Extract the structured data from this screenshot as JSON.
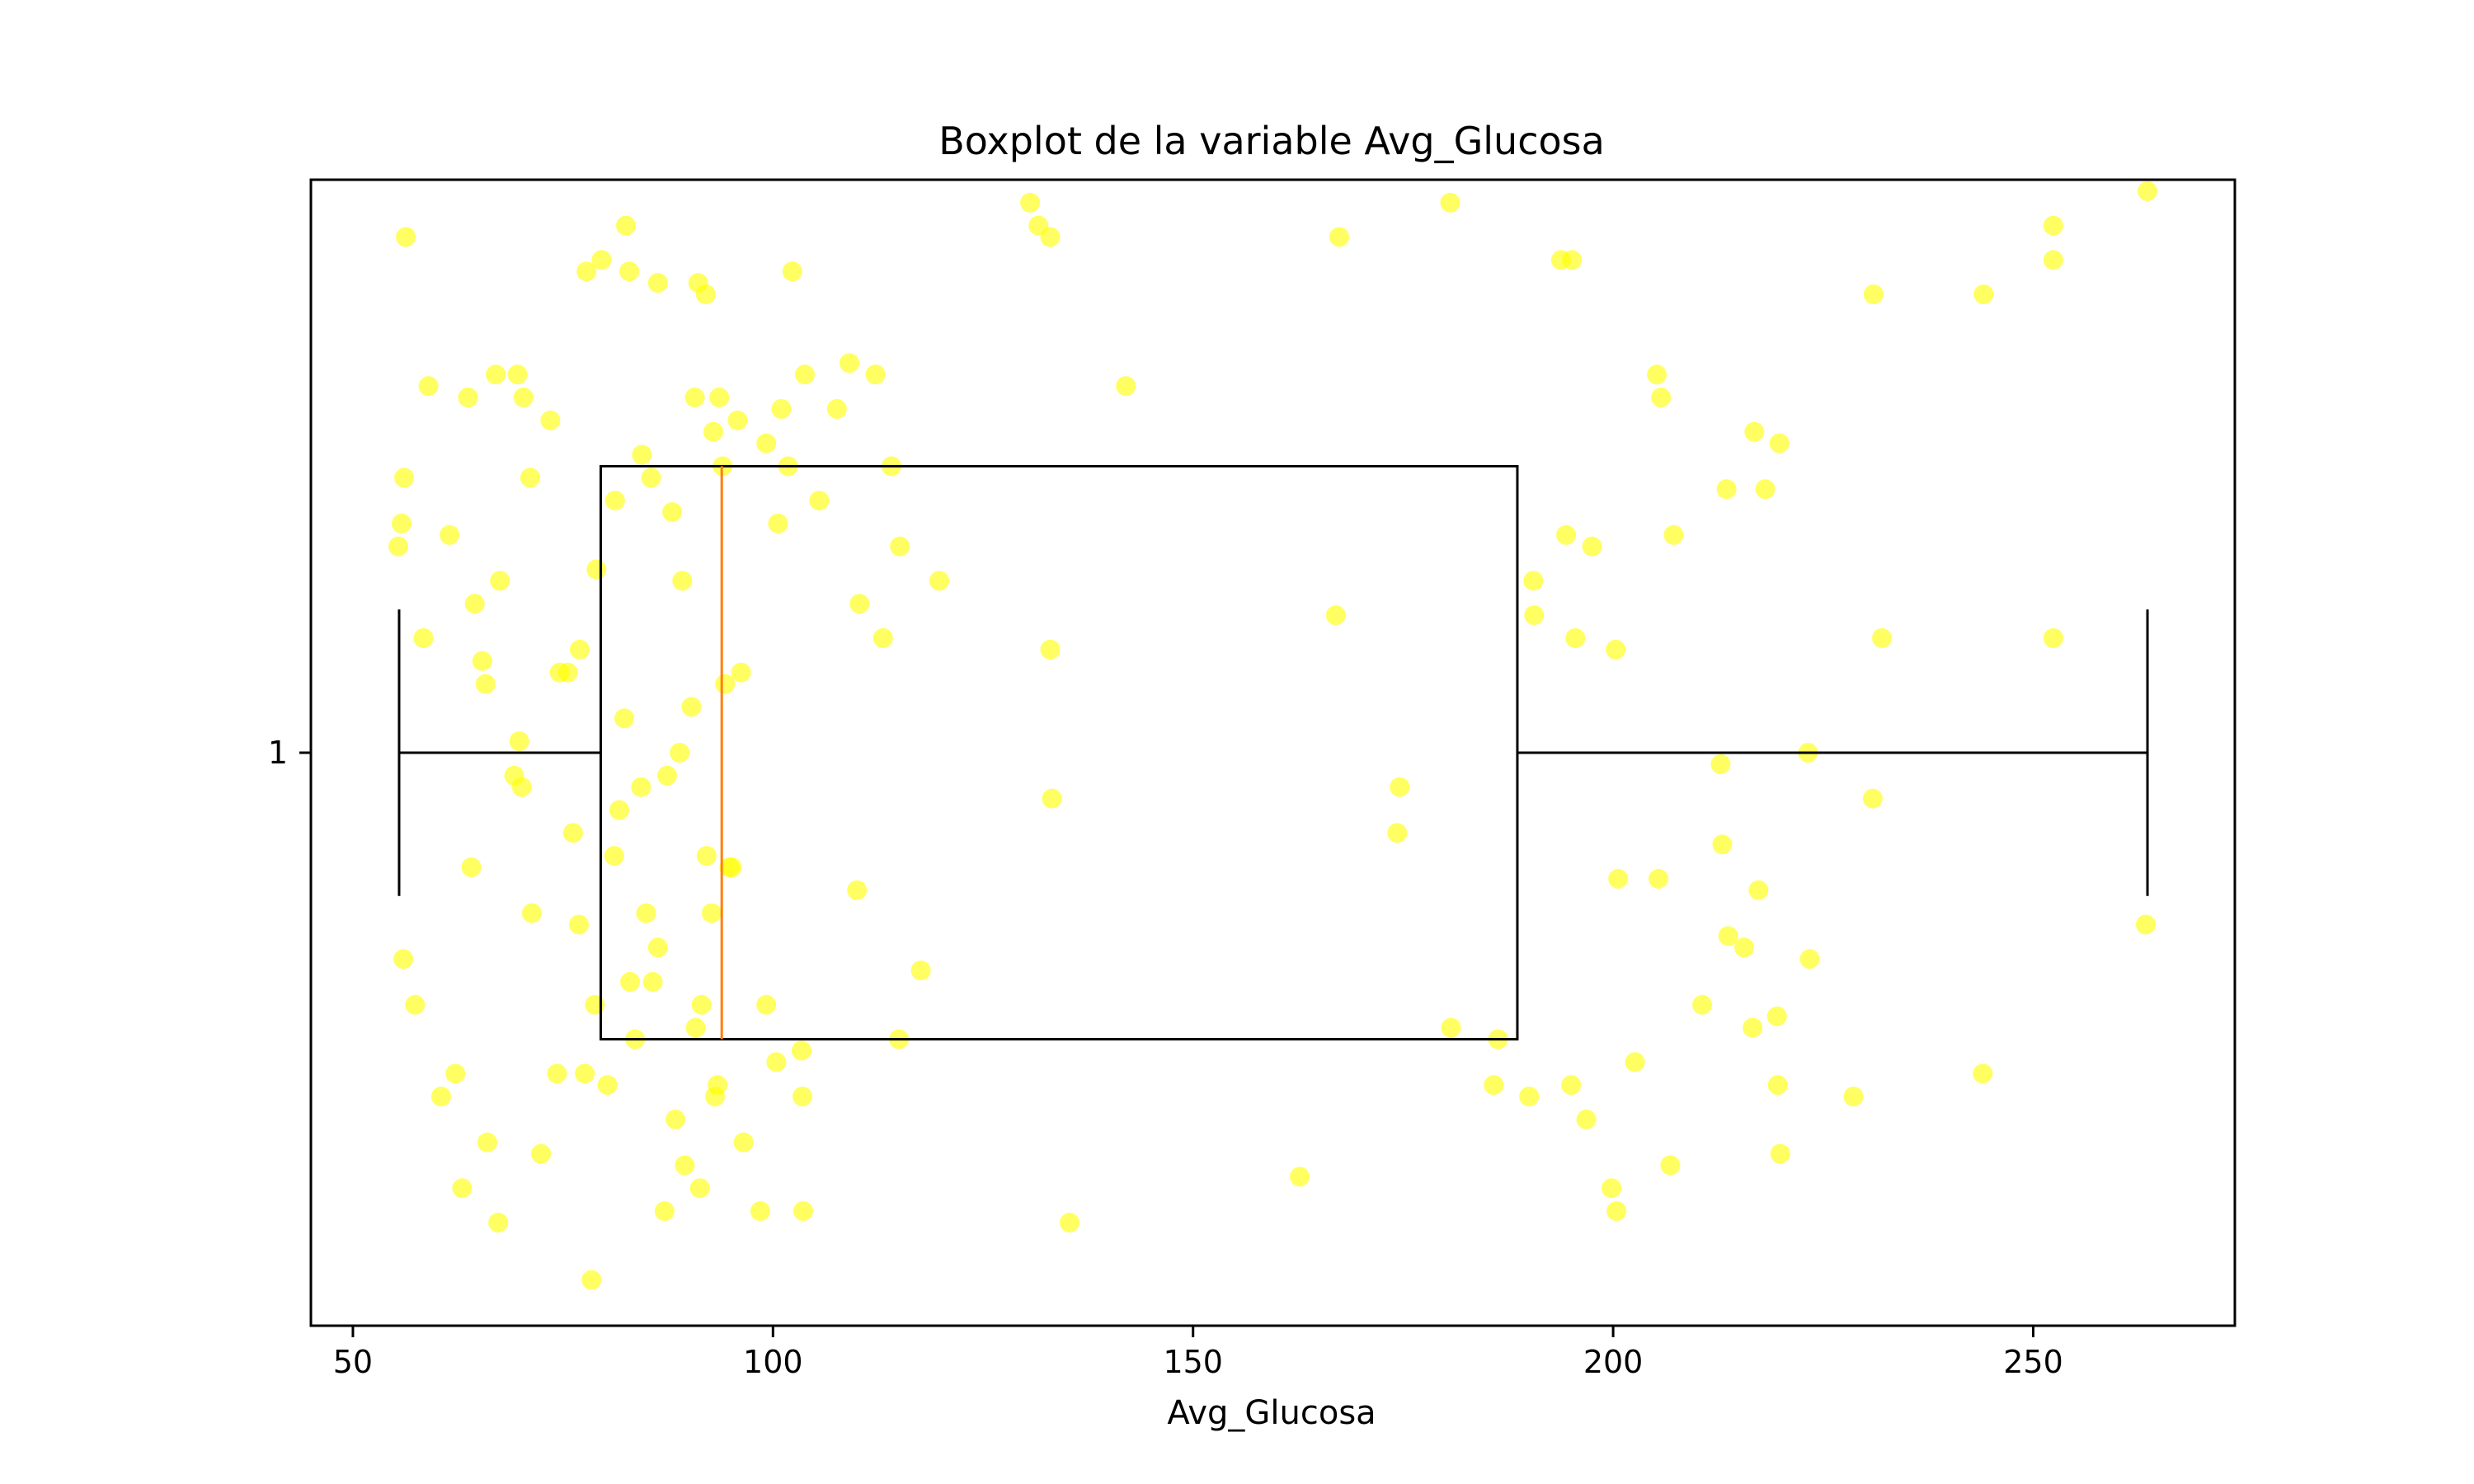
{
  "chart_data": {
    "type": "boxplot",
    "title": "Boxplot de la variable Avg_Glucosa",
    "xlabel": "Avg_Glucosa",
    "ylabel": "",
    "xlim": [
      45,
      274
    ],
    "xticks": [
      50,
      100,
      150,
      200,
      250
    ],
    "yticks": [
      {
        "value": 1,
        "label": "1"
      }
    ],
    "grid": false,
    "colors": {
      "box": "#000000",
      "median": "#ff7f0e",
      "points": "#ffff00",
      "frame": "#000000"
    },
    "box": {
      "position": 1,
      "whisker_low": 55.5,
      "q1": 79.5,
      "median": 93.9,
      "q3": 188.6,
      "whisker_high": 263.6
    },
    "points": [
      [
        56.3,
        1.45
      ],
      [
        56.1,
        1.24
      ],
      [
        55.8,
        1.2
      ],
      [
        55.4,
        1.18
      ],
      [
        58.4,
        1.1
      ],
      [
        59.0,
        1.32
      ],
      [
        61.5,
        1.19
      ],
      [
        63.7,
        1.31
      ],
      [
        64.5,
        1.13
      ],
      [
        65.4,
        1.08
      ],
      [
        65.8,
        1.06
      ],
      [
        67.0,
        1.33
      ],
      [
        67.5,
        1.15
      ],
      [
        69.6,
        1.33
      ],
      [
        70.3,
        1.31
      ],
      [
        71.1,
        1.24
      ],
      [
        73.5,
        1.29
      ],
      [
        74.6,
        1.07
      ],
      [
        75.6,
        1.07
      ],
      [
        77.0,
        1.09
      ],
      [
        77.8,
        1.42
      ],
      [
        79.0,
        1.16
      ],
      [
        79.6,
        1.43
      ],
      [
        81.2,
        1.22
      ],
      [
        82.5,
        1.46
      ],
      [
        82.9,
        1.42
      ],
      [
        84.4,
        1.26
      ],
      [
        85.5,
        1.24
      ],
      [
        86.3,
        1.41
      ],
      [
        88.0,
        1.21
      ],
      [
        89.2,
        1.15
      ],
      [
        90.7,
        1.31
      ],
      [
        91.1,
        1.41
      ],
      [
        92.0,
        1.4
      ],
      [
        92.9,
        1.28
      ],
      [
        93.6,
        1.31
      ],
      [
        94.0,
        1.25
      ],
      [
        95.8,
        1.29
      ],
      [
        96.2,
        1.07
      ],
      [
        99.2,
        1.27
      ],
      [
        100.6,
        1.2
      ],
      [
        101.0,
        1.3
      ],
      [
        101.8,
        1.25
      ],
      [
        102.3,
        1.42
      ],
      [
        103.8,
        1.33
      ],
      [
        105.5,
        1.22
      ],
      [
        107.6,
        1.3
      ],
      [
        109.1,
        1.34
      ],
      [
        110.3,
        1.13
      ],
      [
        112.2,
        1.33
      ],
      [
        113.1,
        1.1
      ],
      [
        114.1,
        1.25
      ],
      [
        115.1,
        1.18
      ],
      [
        119.8,
        1.15
      ],
      [
        130.6,
        1.48
      ],
      [
        131.6,
        1.46
      ],
      [
        133.0,
        1.45
      ],
      [
        142.0,
        1.32
      ],
      [
        167.4,
        1.45
      ],
      [
        180.6,
        1.48
      ],
      [
        193.8,
        1.43
      ],
      [
        195.1,
        1.43
      ],
      [
        194.4,
        1.19
      ],
      [
        190.5,
        1.15
      ],
      [
        190.6,
        1.12
      ],
      [
        195.5,
        1.1
      ],
      [
        197.5,
        1.18
      ],
      [
        200.3,
        1.09
      ],
      [
        205.2,
        1.33
      ],
      [
        205.7,
        1.31
      ],
      [
        207.2,
        1.19
      ],
      [
        213.5,
        1.23
      ],
      [
        216.8,
        1.28
      ],
      [
        218.1,
        1.23
      ],
      [
        219.8,
        1.27
      ],
      [
        231.0,
        1.4
      ],
      [
        232.0,
        1.1
      ],
      [
        244.1,
        1.4
      ],
      [
        252.4,
        1.46
      ],
      [
        252.4,
        1.43
      ],
      [
        252.4,
        1.1
      ],
      [
        263.6,
        1.49
      ],
      [
        56.0,
        0.82
      ],
      [
        57.4,
        0.78
      ],
      [
        64.1,
        0.9
      ],
      [
        60.5,
        0.7
      ],
      [
        62.2,
        0.72
      ],
      [
        63.0,
        0.62
      ],
      [
        66.0,
        0.66
      ],
      [
        67.3,
        0.59
      ],
      [
        69.2,
        0.98
      ],
      [
        69.8,
        1.01
      ],
      [
        70.1,
        0.97
      ],
      [
        71.3,
        0.86
      ],
      [
        72.4,
        0.65
      ],
      [
        74.3,
        0.72
      ],
      [
        76.2,
        0.93
      ],
      [
        76.9,
        0.85
      ],
      [
        77.6,
        0.72
      ],
      [
        78.8,
        0.78
      ],
      [
        78.4,
        0.54
      ],
      [
        80.3,
        0.71
      ],
      [
        81.1,
        0.91
      ],
      [
        81.7,
        0.95
      ],
      [
        82.3,
        1.03
      ],
      [
        83.0,
        0.8
      ],
      [
        83.6,
        0.75
      ],
      [
        84.9,
        0.86
      ],
      [
        85.7,
        0.8
      ],
      [
        86.3,
        0.83
      ],
      [
        87.1,
        0.6
      ],
      [
        88.4,
        0.68
      ],
      [
        88.9,
        1.0
      ],
      [
        89.5,
        0.64
      ],
      [
        90.3,
        1.04
      ],
      [
        90.8,
        0.76
      ],
      [
        91.3,
        0.62
      ],
      [
        92.1,
        0.91
      ],
      [
        92.7,
        0.86
      ],
      [
        93.1,
        0.7
      ],
      [
        93.4,
        0.71
      ],
      [
        94.3,
        1.06
      ],
      [
        94.8,
        0.9
      ],
      [
        96.5,
        0.66
      ],
      [
        98.5,
        0.6
      ],
      [
        99.2,
        0.78
      ],
      [
        100.4,
        0.73
      ],
      [
        103.4,
        0.74
      ],
      [
        103.5,
        0.7
      ],
      [
        103.6,
        0.6
      ],
      [
        110.0,
        0.88
      ],
      [
        115.0,
        0.75
      ],
      [
        117.6,
        0.81
      ],
      [
        133.0,
        1.09
      ],
      [
        133.2,
        0.96
      ],
      [
        135.3,
        0.59
      ],
      [
        162.7,
        0.63
      ],
      [
        167.0,
        1.12
      ],
      [
        174.3,
        0.93
      ],
      [
        174.6,
        0.97
      ],
      [
        180.7,
        0.76
      ],
      [
        185.8,
        0.71
      ],
      [
        186.3,
        0.75
      ],
      [
        190.0,
        0.7
      ],
      [
        195.0,
        0.71
      ],
      [
        196.8,
        0.68
      ],
      [
        200.6,
        0.89
      ],
      [
        199.8,
        0.62
      ],
      [
        200.4,
        0.6
      ],
      [
        202.6,
        0.73
      ],
      [
        205.4,
        0.89
      ],
      [
        206.8,
        0.64
      ],
      [
        210.6,
        0.78
      ],
      [
        212.8,
        0.99
      ],
      [
        213.0,
        0.92
      ],
      [
        213.7,
        0.84
      ],
      [
        215.6,
        0.83
      ],
      [
        216.6,
        0.76
      ],
      [
        217.3,
        0.88
      ],
      [
        219.6,
        0.71
      ],
      [
        219.9,
        0.65
      ],
      [
        219.5,
        0.77
      ],
      [
        223.2,
        1.0
      ],
      [
        223.4,
        0.82
      ],
      [
        228.6,
        0.7
      ],
      [
        230.9,
        0.96
      ],
      [
        244.0,
        0.72
      ],
      [
        263.4,
        0.85
      ],
      [
        91.5,
        0.78
      ],
      [
        95.1,
        0.9
      ],
      [
        84.3,
        0.97
      ],
      [
        87.4,
        0.98
      ]
    ]
  }
}
